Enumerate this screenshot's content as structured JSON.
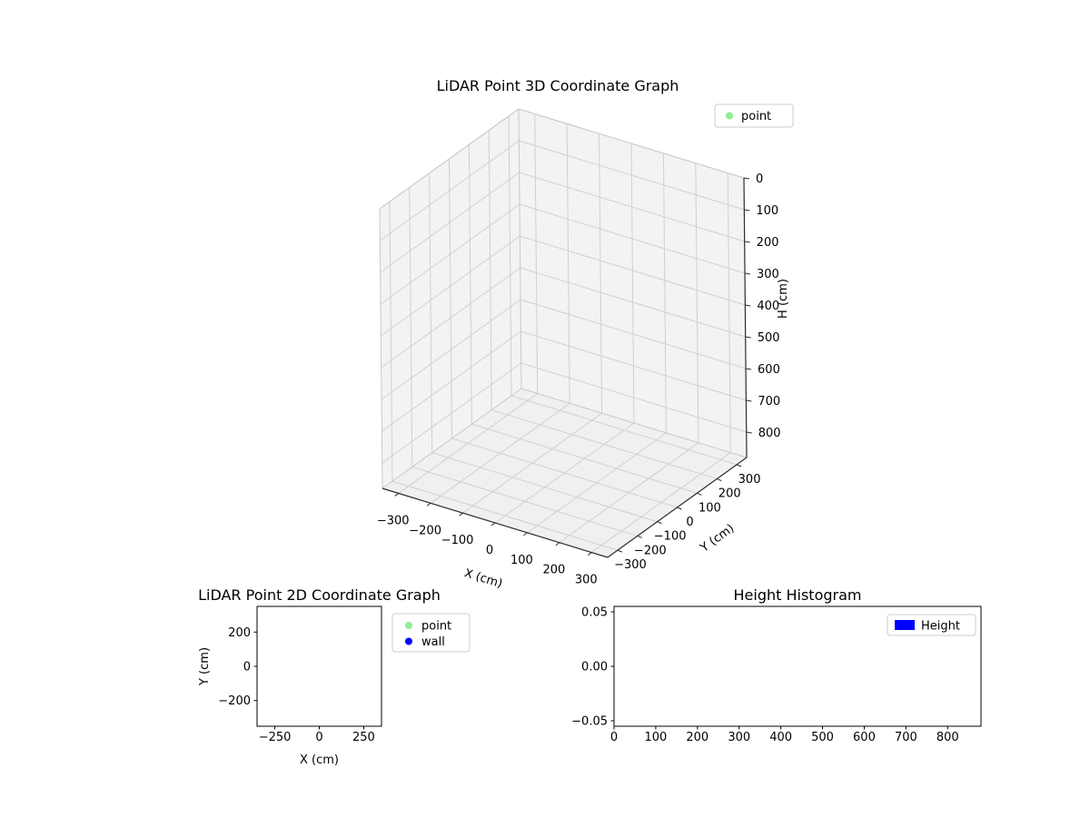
{
  "figure": {
    "background": "#ffffff"
  },
  "chart_data": [
    {
      "id": "plot3d",
      "type": "scatter3d",
      "title": "LiDAR Point 3D Coordinate Graph",
      "xlabel": "X (cm)",
      "ylabel": "Y (cm)",
      "zlabel": "H (cm)",
      "xlim": [
        -350,
        350
      ],
      "ylim": [
        -350,
        350
      ],
      "zlim": [
        0,
        880
      ],
      "z_axis_inverted": true,
      "xticks": [
        "−300",
        "−200",
        "−100",
        "0",
        "100",
        "200",
        "300"
      ],
      "yticks": [
        "−300",
        "−200",
        "−100",
        "0",
        "100",
        "200",
        "300"
      ],
      "zticks": [
        "0",
        "100",
        "200",
        "300",
        "400",
        "500",
        "600",
        "700",
        "800"
      ],
      "grid": true,
      "pane_color": "#f3f3f3",
      "floor_color": "#f0f0f0",
      "grid_color": "#d0d0d0",
      "legend": {
        "position": "upper-right-outside",
        "entries": [
          {
            "label": "point",
            "marker": "dot",
            "color": "#90ee90"
          }
        ]
      },
      "points": []
    },
    {
      "id": "plot2d",
      "type": "scatter",
      "title": "LiDAR Point 2D Coordinate Graph",
      "xlabel": "X (cm)",
      "ylabel": "Y (cm)",
      "xlim": [
        -350,
        350
      ],
      "ylim": [
        -350,
        350
      ],
      "xticks": [
        "−250",
        "0",
        "250"
      ],
      "yticks": [
        "−200",
        "0",
        "200"
      ],
      "grid": false,
      "legend": {
        "position": "right-of-axes",
        "entries": [
          {
            "label": "point",
            "marker": "dot",
            "color": "#90ee90"
          },
          {
            "label": "wall",
            "marker": "dot",
            "color": "#0000ff"
          }
        ]
      },
      "points": []
    },
    {
      "id": "hist",
      "type": "histogram",
      "title": "Height Histogram",
      "xlabel": "",
      "ylabel": "",
      "xlim": [
        0,
        880
      ],
      "ylim": [
        -0.055,
        0.055
      ],
      "xticks": [
        "0",
        "100",
        "200",
        "300",
        "400",
        "500",
        "600",
        "700",
        "800"
      ],
      "yticks": [
        "−0.05",
        "0.00",
        "0.05"
      ],
      "grid": false,
      "legend": {
        "position": "upper-right-inside",
        "entries": [
          {
            "label": "Height",
            "marker": "patch",
            "color": "#0000ff"
          }
        ]
      },
      "values": []
    }
  ]
}
